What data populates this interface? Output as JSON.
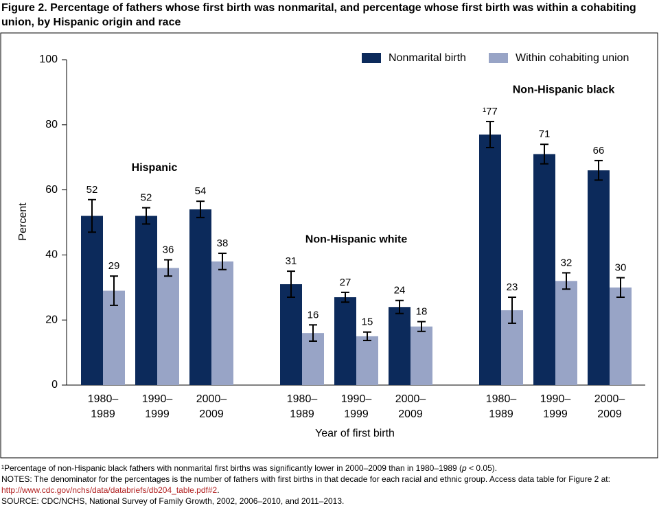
{
  "chart_data": {
    "type": "bar",
    "title": "Figure 2. Percentage of fathers whose first birth was nonmarital, and percentage whose first birth was within a cohabiting union, by Hispanic origin and race",
    "y_label": "Percent",
    "x_label": "Year of first birth",
    "groups": [
      {
        "name": "Hispanic",
        "categories": [
          [
            "1980–",
            "1989"
          ],
          [
            "1990–",
            "1999"
          ],
          [
            "2000–",
            "2009"
          ]
        ]
      },
      {
        "name": "Non-Hispanic white",
        "categories": [
          [
            "1980–",
            "1989"
          ],
          [
            "1990–",
            "1999"
          ],
          [
            "2000–",
            "2009"
          ]
        ]
      },
      {
        "name": "Non-Hispanic black",
        "categories": [
          [
            "1980–",
            "1989"
          ],
          [
            "1990–",
            "1999"
          ],
          [
            "2000–",
            "2009"
          ]
        ]
      }
    ],
    "series": [
      {
        "name": "Nonmarital birth",
        "color": "#0c2a5b",
        "values": [
          52,
          52,
          54,
          31,
          27,
          24,
          77,
          71,
          66
        ],
        "value_labels": [
          "52",
          "52",
          "54",
          "31",
          "27",
          "24",
          "¹77",
          "71",
          "66"
        ],
        "errors": [
          5,
          2.5,
          2.5,
          4,
          1.5,
          2,
          4,
          3,
          3
        ]
      },
      {
        "name": "Within cohabiting union",
        "color": "#98a4c6",
        "values": [
          29,
          36,
          38,
          16,
          15,
          18,
          23,
          32,
          30
        ],
        "errors": [
          4.5,
          2.5,
          2.5,
          2.5,
          1.3,
          1.5,
          4,
          2.5,
          3
        ]
      }
    ],
    "ylim": [
      0,
      100
    ],
    "yticks": [
      0,
      20,
      40,
      60,
      80,
      100
    ],
    "error_bars": true,
    "legend": "top-right"
  },
  "notes": {
    "footnote": [
      "¹Percentage of non-Hispanic black fathers with nonmarital first births was significantly lower in 2000–2009 than in 1980–1989 (",
      "p",
      " < 0.05)."
    ],
    "notes": "NOTES: The denominator for the percentages is the number of fathers with first births in that decade for each racial and ethnic group. Access data table for Figure 2 at: ",
    "link": "http://www.cdc.gov/nchs/data/databriefs/db204_table.pdf#2",
    "notes_end": ".",
    "source": "SOURCE: CDC/NCHS, National Survey of Family Growth, 2002, 2006–2010, and 2011–2013."
  }
}
